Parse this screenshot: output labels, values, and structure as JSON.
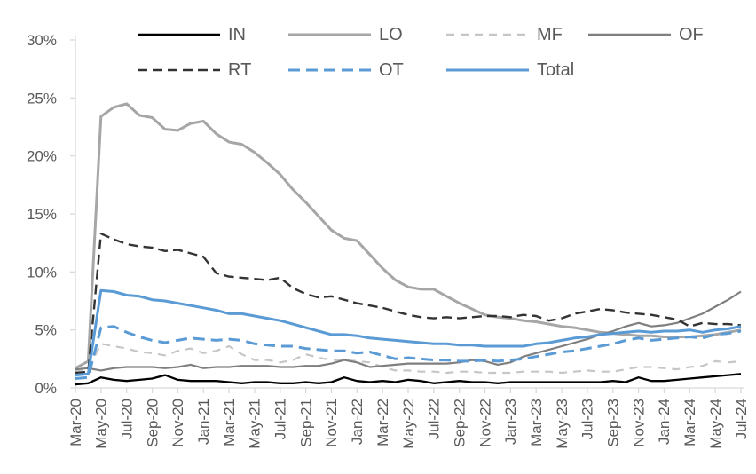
{
  "chart_data": {
    "type": "line",
    "title": "",
    "xlabel": "",
    "ylabel": "",
    "ylim": [
      0,
      30
    ],
    "grid": false,
    "legend_position": "top",
    "x": [
      "Mar-20",
      "Apr-20",
      "May-20",
      "Jun-20",
      "Jul-20",
      "Aug-20",
      "Sep-20",
      "Oct-20",
      "Nov-20",
      "Dec-20",
      "Jan-21",
      "Feb-21",
      "Mar-21",
      "Apr-21",
      "May-21",
      "Jun-21",
      "Jul-21",
      "Aug-21",
      "Sep-21",
      "Oct-21",
      "Nov-21",
      "Dec-21",
      "Jan-22",
      "Feb-22",
      "Mar-22",
      "Apr-22",
      "May-22",
      "Jun-22",
      "Jul-22",
      "Aug-22",
      "Sep-22",
      "Oct-22",
      "Nov-22",
      "Dec-22",
      "Jan-23",
      "Feb-23",
      "Mar-23",
      "Apr-23",
      "May-23",
      "Jun-23",
      "Jul-23",
      "Aug-23",
      "Sep-23",
      "Oct-23",
      "Nov-23",
      "Dec-23",
      "Jan-24",
      "Feb-24",
      "Mar-24",
      "Apr-24",
      "May-24",
      "Jun-24",
      "Jul-24"
    ],
    "x_tick_labels": [
      "Mar-20",
      "May-20",
      "Jul-20",
      "Sep-20",
      "Nov-20",
      "Jan-21",
      "Mar-21",
      "May-21",
      "Jul-21",
      "Sep-21",
      "Nov-21",
      "Jan-22",
      "Mar-22",
      "May-22",
      "Jul-22",
      "Sep-22",
      "Nov-22",
      "Jan-23",
      "Mar-23",
      "May-23",
      "Jul-23",
      "Sep-23",
      "Nov-23",
      "Jan-24",
      "Mar-24",
      "May-24",
      "Jul-24"
    ],
    "y_tick_values": [
      0,
      5,
      10,
      15,
      20,
      25,
      30
    ],
    "y_tick_labels": [
      "0%",
      "5%",
      "10%",
      "15%",
      "20%",
      "25%",
      "30%"
    ],
    "legend_rows": [
      [
        "IN",
        "LO",
        "MF",
        "OF"
      ],
      [
        "RT",
        "OT",
        "Total"
      ]
    ],
    "series": [
      {
        "name": "IN",
        "color": "#000000",
        "dash": "",
        "width": 2.3,
        "values": [
          0.3,
          0.4,
          0.9,
          0.7,
          0.6,
          0.7,
          0.8,
          1.1,
          0.7,
          0.6,
          0.6,
          0.6,
          0.5,
          0.4,
          0.5,
          0.5,
          0.4,
          0.4,
          0.5,
          0.4,
          0.5,
          0.9,
          0.6,
          0.5,
          0.6,
          0.5,
          0.7,
          0.6,
          0.4,
          0.5,
          0.6,
          0.5,
          0.5,
          0.4,
          0.5,
          0.5,
          0.5,
          0.5,
          0.5,
          0.5,
          0.5,
          0.5,
          0.6,
          0.5,
          0.9,
          0.6,
          0.6,
          0.7,
          0.8,
          0.9,
          1.0,
          1.1,
          1.2
        ]
      },
      {
        "name": "LO",
        "color": "#a6a6a6",
        "dash": "",
        "width": 3,
        "values": [
          1.7,
          2.3,
          23.4,
          24.2,
          24.5,
          23.5,
          23.3,
          22.3,
          22.2,
          22.8,
          23.0,
          21.9,
          21.2,
          21.0,
          20.3,
          19.4,
          18.4,
          17.1,
          16.0,
          14.8,
          13.6,
          12.9,
          12.7,
          11.5,
          10.3,
          9.3,
          8.7,
          8.5,
          8.5,
          7.9,
          7.3,
          6.8,
          6.3,
          6.1,
          6.0,
          5.8,
          5.7,
          5.5,
          5.3,
          5.2,
          5.0,
          4.8,
          4.7,
          4.6,
          4.5,
          4.5,
          4.4,
          4.4,
          4.4,
          4.5,
          4.6,
          4.8,
          5.0
        ]
      },
      {
        "name": "MF",
        "color": "#c6c6c6",
        "dash": "9,7",
        "width": 2.2,
        "values": [
          1.5,
          1.6,
          3.8,
          3.6,
          3.4,
          3.1,
          3.0,
          2.8,
          3.2,
          3.4,
          3.0,
          3.2,
          3.6,
          2.9,
          2.4,
          2.4,
          2.2,
          2.4,
          2.9,
          2.6,
          2.4,
          2.4,
          2.3,
          2.2,
          1.8,
          1.5,
          1.5,
          1.4,
          1.4,
          1.3,
          1.4,
          1.4,
          1.3,
          1.3,
          1.3,
          1.4,
          1.4,
          1.4,
          1.3,
          1.4,
          1.5,
          1.4,
          1.4,
          1.6,
          1.8,
          1.8,
          1.7,
          1.6,
          1.8,
          1.9,
          2.3,
          2.2,
          2.3
        ]
      },
      {
        "name": "OF",
        "color": "#7f7f7f",
        "dash": "",
        "width": 2.2,
        "values": [
          1.6,
          1.7,
          1.5,
          1.7,
          1.8,
          1.8,
          1.8,
          1.7,
          1.8,
          2.0,
          1.7,
          1.8,
          1.8,
          1.9,
          1.9,
          1.9,
          1.8,
          1.8,
          1.9,
          1.9,
          2.1,
          2.4,
          2.2,
          1.8,
          1.9,
          2.0,
          2.1,
          2.1,
          2.1,
          2.1,
          2.2,
          2.4,
          2.3,
          2.0,
          2.2,
          2.7,
          3.0,
          3.3,
          3.6,
          3.9,
          4.2,
          4.6,
          4.9,
          5.3,
          5.6,
          5.3,
          5.4,
          5.6,
          6.0,
          6.4,
          7.0,
          7.6,
          8.3
        ]
      },
      {
        "name": "RT",
        "color": "#333333",
        "dash": "11,6",
        "width": 2.4,
        "values": [
          1.3,
          1.4,
          13.3,
          12.8,
          12.4,
          12.2,
          12.1,
          11.8,
          11.9,
          11.6,
          11.3,
          9.9,
          9.6,
          9.5,
          9.4,
          9.3,
          9.5,
          8.6,
          8.1,
          7.8,
          7.9,
          7.6,
          7.3,
          7.1,
          6.9,
          6.6,
          6.3,
          6.1,
          6.0,
          6.1,
          6.0,
          6.1,
          6.2,
          6.2,
          6.1,
          6.3,
          6.2,
          5.8,
          6.0,
          6.4,
          6.6,
          6.8,
          6.7,
          6.5,
          6.4,
          6.3,
          6.1,
          5.9,
          5.3,
          5.6,
          5.5,
          5.5,
          5.4
        ]
      },
      {
        "name": "OT",
        "color": "#5b9bd5",
        "dash": "13,7",
        "width": 3,
        "values": [
          0.8,
          0.9,
          5.2,
          5.3,
          4.8,
          4.4,
          4.1,
          3.9,
          4.1,
          4.3,
          4.2,
          4.1,
          4.2,
          4.1,
          3.8,
          3.7,
          3.6,
          3.6,
          3.4,
          3.3,
          3.2,
          3.2,
          3.0,
          3.1,
          2.8,
          2.5,
          2.6,
          2.5,
          2.4,
          2.4,
          2.3,
          2.3,
          2.4,
          2.3,
          2.4,
          2.5,
          2.7,
          2.9,
          3.1,
          3.2,
          3.4,
          3.6,
          3.8,
          4.1,
          4.3,
          4.1,
          4.2,
          4.3,
          4.4,
          4.3,
          4.6,
          4.7,
          4.9
        ]
      },
      {
        "name": "Total",
        "color": "#5b9bd5",
        "dash": "",
        "width": 3,
        "values": [
          1.1,
          1.2,
          8.4,
          8.3,
          8.0,
          7.9,
          7.6,
          7.5,
          7.3,
          7.1,
          6.9,
          6.7,
          6.4,
          6.4,
          6.2,
          6.0,
          5.8,
          5.5,
          5.2,
          4.9,
          4.6,
          4.6,
          4.5,
          4.3,
          4.2,
          4.1,
          4.0,
          3.9,
          3.8,
          3.8,
          3.7,
          3.7,
          3.6,
          3.6,
          3.6,
          3.6,
          3.8,
          3.9,
          4.1,
          4.3,
          4.4,
          4.6,
          4.7,
          4.8,
          4.9,
          4.8,
          4.9,
          4.9,
          5.0,
          4.8,
          5.0,
          5.1,
          5.3
        ]
      }
    ],
    "style": {
      "axis_line_color": "#d9d9d9",
      "tick_color": "#d9d9d9",
      "label_color": "#595959",
      "axis_font_px": 17,
      "legend_font_px": 20
    }
  }
}
